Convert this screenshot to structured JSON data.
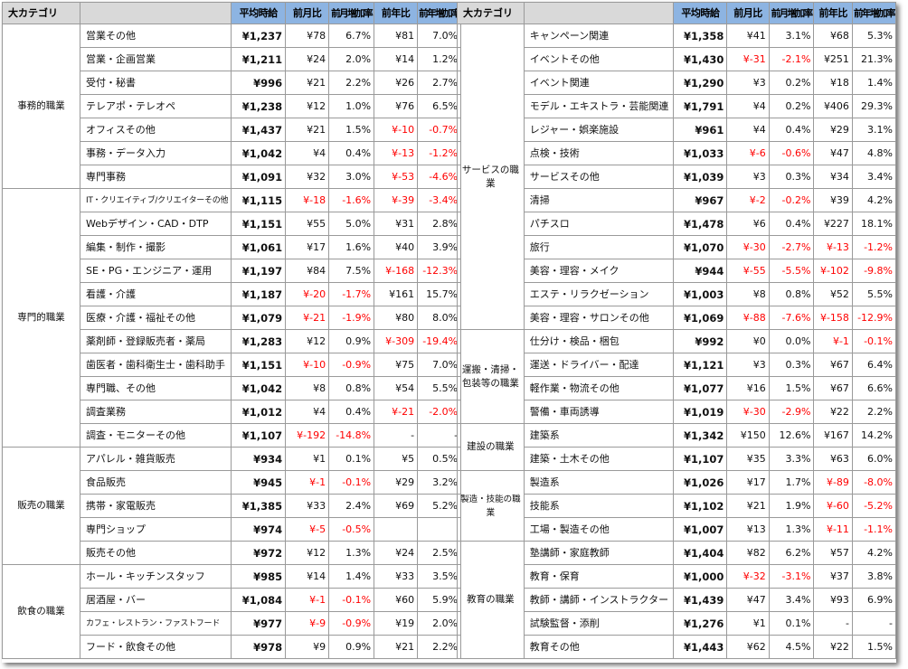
{
  "headers": {
    "category": "大カテゴリ",
    "avg": "平均時給",
    "mom": "前月比",
    "mom_rate": "前月増加率",
    "yoy": "前年比",
    "yoy_rate": "前年増加率"
  },
  "left_groups": [
    {
      "category": "事務的職業",
      "rows": [
        {
          "job": "営業その他",
          "avg": "¥1,237",
          "mom": "¥78",
          "mom_rate": "6.7%",
          "yoy": "¥81",
          "yoy_rate": "7.0%"
        },
        {
          "job": "営業・企画営業",
          "avg": "¥1,211",
          "mom": "¥24",
          "mom_rate": "2.0%",
          "yoy": "¥14",
          "yoy_rate": "1.2%"
        },
        {
          "job": "受付・秘書",
          "avg": "¥996",
          "mom": "¥21",
          "mom_rate": "2.2%",
          "yoy": "¥26",
          "yoy_rate": "2.7%"
        },
        {
          "job": "テレアポ・テレオペ",
          "avg": "¥1,238",
          "mom": "¥12",
          "mom_rate": "1.0%",
          "yoy": "¥76",
          "yoy_rate": "6.5%"
        },
        {
          "job": "オフィスその他",
          "avg": "¥1,437",
          "mom": "¥21",
          "mom_rate": "1.5%",
          "yoy": "¥-10",
          "yoy_rate": "-0.7%"
        },
        {
          "job": "事務・データ入力",
          "avg": "¥1,042",
          "mom": "¥4",
          "mom_rate": "0.4%",
          "yoy": "¥-13",
          "yoy_rate": "-1.2%"
        },
        {
          "job": "専門事務",
          "avg": "¥1,091",
          "mom": "¥32",
          "mom_rate": "3.0%",
          "yoy": "¥-53",
          "yoy_rate": "-4.6%"
        }
      ]
    },
    {
      "category": "専門的職業",
      "rows": [
        {
          "job": "IT・クリエイティブ/クリエイターその他",
          "small": true,
          "avg": "¥1,115",
          "mom": "¥-18",
          "mom_rate": "-1.6%",
          "yoy": "¥-39",
          "yoy_rate": "-3.4%"
        },
        {
          "job": "Webデザイン・CAD・DTP",
          "avg": "¥1,151",
          "mom": "¥55",
          "mom_rate": "5.0%",
          "yoy": "¥31",
          "yoy_rate": "2.8%"
        },
        {
          "job": "編集・制作・撮影",
          "avg": "¥1,061",
          "mom": "¥17",
          "mom_rate": "1.6%",
          "yoy": "¥40",
          "yoy_rate": "3.9%"
        },
        {
          "job": "SE・PG・エンジニア・運用",
          "avg": "¥1,197",
          "mom": "¥84",
          "mom_rate": "7.5%",
          "yoy": "¥-168",
          "yoy_rate": "-12.3%"
        },
        {
          "job": "看護・介護",
          "avg": "¥1,187",
          "mom": "¥-20",
          "mom_rate": "-1.7%",
          "yoy": "¥161",
          "yoy_rate": "15.7%"
        },
        {
          "job": "医療・介護・福祉その他",
          "avg": "¥1,079",
          "mom": "¥-21",
          "mom_rate": "-1.9%",
          "yoy": "¥80",
          "yoy_rate": "8.0%"
        },
        {
          "job": "薬剤師・登録販売者・薬局",
          "avg": "¥1,283",
          "mom": "¥12",
          "mom_rate": "0.9%",
          "yoy": "¥-309",
          "yoy_rate": "-19.4%"
        },
        {
          "job": "歯医者・歯科衛生士・歯科助手",
          "avg": "¥1,151",
          "mom": "¥-10",
          "mom_rate": "-0.9%",
          "yoy": "¥75",
          "yoy_rate": "7.0%"
        },
        {
          "job": "専門職、その他",
          "avg": "¥1,042",
          "mom": "¥8",
          "mom_rate": "0.8%",
          "yoy": "¥54",
          "yoy_rate": "5.5%"
        },
        {
          "job": "調査業務",
          "avg": "¥1,012",
          "mom": "¥4",
          "mom_rate": "0.4%",
          "yoy": "¥-21",
          "yoy_rate": "-2.0%"
        },
        {
          "job": "調査・モニターその他",
          "avg": "¥1,107",
          "mom": "¥-192",
          "mom_rate": "-14.8%",
          "yoy": "-",
          "yoy_rate": "-"
        }
      ]
    },
    {
      "category": "販売の職業",
      "rows": [
        {
          "job": "アパレル・雑貨販売",
          "avg": "¥934",
          "mom": "¥1",
          "mom_rate": "0.1%",
          "yoy": "¥5",
          "yoy_rate": "0.5%"
        },
        {
          "job": "食品販売",
          "avg": "¥945",
          "mom": "¥-1",
          "mom_rate": "-0.1%",
          "yoy": "¥29",
          "yoy_rate": "3.2%"
        },
        {
          "job": "携帯・家電販売",
          "avg": "¥1,385",
          "mom": "¥33",
          "mom_rate": "2.4%",
          "yoy": "¥69",
          "yoy_rate": "5.2%"
        },
        {
          "job": "専門ショップ",
          "avg": "¥974",
          "mom": "¥-5",
          "mom_rate": "-0.5%",
          "yoy": "",
          "yoy_rate": ""
        },
        {
          "job": "販売その他",
          "avg": "¥972",
          "mom": "¥12",
          "mom_rate": "1.3%",
          "yoy": "¥24",
          "yoy_rate": "2.5%"
        }
      ]
    },
    {
      "category": "飲食の職業",
      "rows": [
        {
          "job": "ホール・キッチンスタッフ",
          "avg": "¥985",
          "mom": "¥14",
          "mom_rate": "1.4%",
          "yoy": "¥33",
          "yoy_rate": "3.5%"
        },
        {
          "job": "居酒屋・バー",
          "avg": "¥1,084",
          "mom": "¥-1",
          "mom_rate": "-0.1%",
          "yoy": "¥60",
          "yoy_rate": "5.9%"
        },
        {
          "job": "カフェ・レストラン・ファストフード",
          "small": true,
          "avg": "¥977",
          "mom": "¥-9",
          "mom_rate": "-0.9%",
          "yoy": "¥19",
          "yoy_rate": "2.0%"
        },
        {
          "job": "フード・飲食その他",
          "avg": "¥978",
          "mom": "¥9",
          "mom_rate": "0.9%",
          "yoy": "¥21",
          "yoy_rate": "2.2%"
        }
      ]
    }
  ],
  "right_groups": [
    {
      "category": "サービスの職業",
      "rows": [
        {
          "job": "キャンペーン関連",
          "avg": "¥1,358",
          "mom": "¥41",
          "mom_rate": "3.1%",
          "yoy": "¥68",
          "yoy_rate": "5.3%"
        },
        {
          "job": "イベントその他",
          "avg": "¥1,430",
          "mom": "¥-31",
          "mom_rate": "-2.1%",
          "yoy": "¥251",
          "yoy_rate": "21.3%"
        },
        {
          "job": "イベント関連",
          "avg": "¥1,290",
          "mom": "¥3",
          "mom_rate": "0.2%",
          "yoy": "¥18",
          "yoy_rate": "1.4%"
        },
        {
          "job": "モデル・エキストラ・芸能関連",
          "avg": "¥1,791",
          "mom": "¥4",
          "mom_rate": "0.2%",
          "yoy": "¥406",
          "yoy_rate": "29.3%"
        },
        {
          "job": "レジャー・娯楽施設",
          "avg": "¥961",
          "mom": "¥4",
          "mom_rate": "0.4%",
          "yoy": "¥29",
          "yoy_rate": "3.1%"
        },
        {
          "job": "点検・技術",
          "avg": "¥1,033",
          "mom": "¥-6",
          "mom_rate": "-0.6%",
          "yoy": "¥47",
          "yoy_rate": "4.8%"
        },
        {
          "job": "サービスその他",
          "avg": "¥1,039",
          "mom": "¥3",
          "mom_rate": "0.3%",
          "yoy": "¥34",
          "yoy_rate": "3.4%"
        },
        {
          "job": "清掃",
          "avg": "¥967",
          "mom": "¥-2",
          "mom_rate": "-0.2%",
          "yoy": "¥39",
          "yoy_rate": "4.2%"
        },
        {
          "job": "パチスロ",
          "avg": "¥1,478",
          "mom": "¥6",
          "mom_rate": "0.4%",
          "yoy": "¥227",
          "yoy_rate": "18.1%"
        },
        {
          "job": "旅行",
          "avg": "¥1,070",
          "mom": "¥-30",
          "mom_rate": "-2.7%",
          "yoy": "¥-13",
          "yoy_rate": "-1.2%"
        },
        {
          "job": "美容・理容・メイク",
          "avg": "¥944",
          "mom": "¥-55",
          "mom_rate": "-5.5%",
          "yoy": "¥-102",
          "yoy_rate": "-9.8%"
        },
        {
          "job": "エステ・リラクゼーション",
          "avg": "¥1,003",
          "mom": "¥8",
          "mom_rate": "0.8%",
          "yoy": "¥52",
          "yoy_rate": "5.5%"
        },
        {
          "job": "美容・理容・サロンその他",
          "avg": "¥1,069",
          "mom": "¥-88",
          "mom_rate": "-7.6%",
          "yoy": "¥-158",
          "yoy_rate": "-12.9%"
        }
      ]
    },
    {
      "category": "運搬・清掃・包装等の職業",
      "rows": [
        {
          "job": "仕分け・検品・梱包",
          "avg": "¥992",
          "mom": "¥0",
          "mom_rate": "0.0%",
          "yoy": "¥-1",
          "yoy_rate": "-0.1%"
        },
        {
          "job": "運送・ドライバー・配達",
          "avg": "¥1,121",
          "mom": "¥3",
          "mom_rate": "0.3%",
          "yoy": "¥67",
          "yoy_rate": "6.4%"
        },
        {
          "job": "軽作業・物流その他",
          "avg": "¥1,077",
          "mom": "¥16",
          "mom_rate": "1.5%",
          "yoy": "¥67",
          "yoy_rate": "6.6%"
        },
        {
          "job": "警備・車両誘導",
          "avg": "¥1,019",
          "mom": "¥-30",
          "mom_rate": "-2.9%",
          "yoy": "¥22",
          "yoy_rate": "2.2%"
        }
      ]
    },
    {
      "category": "建設の職業",
      "rows": [
        {
          "job": "建築系",
          "avg": "¥1,342",
          "mom": "¥150",
          "mom_rate": "12.6%",
          "yoy": "¥167",
          "yoy_rate": "14.2%"
        },
        {
          "job": "建築・土木その他",
          "avg": "¥1,107",
          "mom": "¥35",
          "mom_rate": "3.3%",
          "yoy": "¥63",
          "yoy_rate": "6.0%"
        }
      ]
    },
    {
      "category": "製造・技能の職業",
      "small": true,
      "rows": [
        {
          "job": "製造系",
          "avg": "¥1,026",
          "mom": "¥17",
          "mom_rate": "1.7%",
          "yoy": "¥-89",
          "yoy_rate": "-8.0%"
        },
        {
          "job": "技能系",
          "avg": "¥1,102",
          "mom": "¥21",
          "mom_rate": "1.9%",
          "yoy": "¥-60",
          "yoy_rate": "-5.2%"
        },
        {
          "job": "工場・製造その他",
          "avg": "¥1,007",
          "mom": "¥13",
          "mom_rate": "1.3%",
          "yoy": "¥-11",
          "yoy_rate": "-1.1%"
        }
      ]
    },
    {
      "category": "教育の職業",
      "rows": [
        {
          "job": "塾講師・家庭教師",
          "avg": "¥1,404",
          "mom": "¥82",
          "mom_rate": "6.2%",
          "yoy": "¥57",
          "yoy_rate": "4.2%"
        },
        {
          "job": "教育・保育",
          "avg": "¥1,000",
          "mom": "¥-32",
          "mom_rate": "-3.1%",
          "yoy": "¥37",
          "yoy_rate": "3.8%"
        },
        {
          "job": "教師・講師・インストラクター",
          "avg": "¥1,439",
          "mom": "¥47",
          "mom_rate": "3.4%",
          "yoy": "¥93",
          "yoy_rate": "6.9%"
        },
        {
          "job": "試験監督・添削",
          "avg": "¥1,276",
          "mom": "¥1",
          "mom_rate": "0.1%",
          "yoy": "-",
          "yoy_rate": "-"
        },
        {
          "job": "教育その他",
          "avg": "¥1,443",
          "mom": "¥62",
          "mom_rate": "4.5%",
          "yoy": "¥22",
          "yoy_rate": "1.5%"
        }
      ]
    }
  ]
}
